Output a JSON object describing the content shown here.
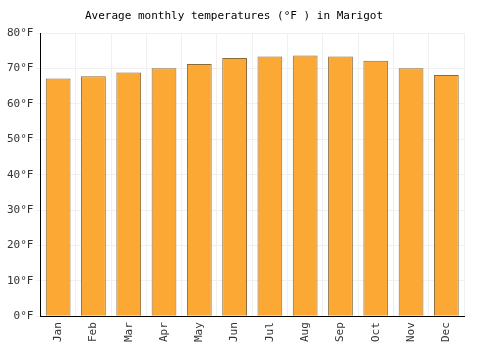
{
  "chart_data": {
    "type": "bar",
    "title": "Average monthly temperatures (°F ) in Marigot",
    "categories": [
      "Jan",
      "Feb",
      "Mar",
      "Apr",
      "May",
      "Jun",
      "Jul",
      "Aug",
      "Sep",
      "Oct",
      "Nov",
      "Dec"
    ],
    "values": [
      67.2,
      67.8,
      68.9,
      70.1,
      71.3,
      73.0,
      73.4,
      73.7,
      73.4,
      72.2,
      70.1,
      68.2
    ],
    "color": "#fba834",
    "ylim": [
      0,
      80
    ],
    "yticks": [
      {
        "value": 0,
        "label": "0°F"
      },
      {
        "value": 10,
        "label": "10°F"
      },
      {
        "value": 20,
        "label": "20°F"
      },
      {
        "value": 30,
        "label": "30°F"
      },
      {
        "value": 40,
        "label": "40°F"
      },
      {
        "value": 50,
        "label": "50°F"
      },
      {
        "value": 60,
        "label": "60°F"
      },
      {
        "value": 70,
        "label": "70°F"
      },
      {
        "value": 80,
        "label": "80°F"
      }
    ],
    "grid": true
  }
}
